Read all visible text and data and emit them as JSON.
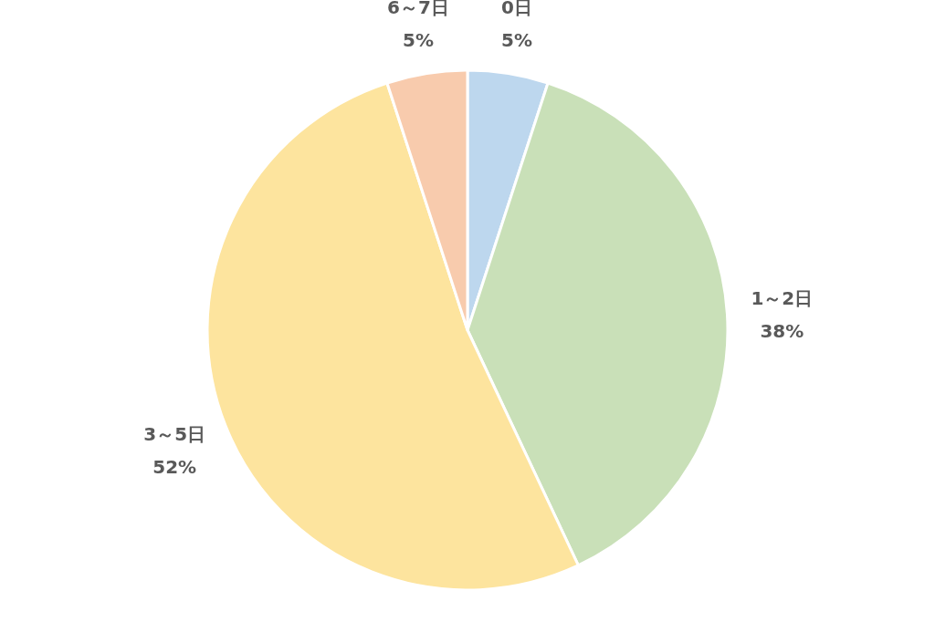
{
  "chart_data": {
    "type": "pie",
    "categories": [
      "0日",
      "1～2日",
      "3～5日",
      "6～7日"
    ],
    "values": [
      5,
      38,
      52,
      5
    ],
    "colors": [
      "#bdd7ee",
      "#c9e0b8",
      "#fde49e",
      "#f8cbad"
    ],
    "value_labels": [
      "5%",
      "38%",
      "52%",
      "5%"
    ]
  }
}
